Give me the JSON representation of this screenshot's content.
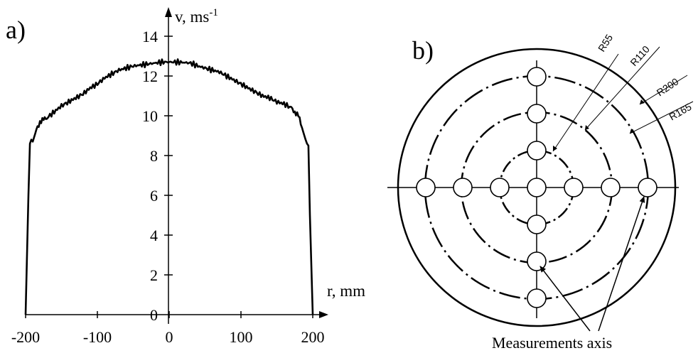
{
  "chart_data": [
    {
      "type": "line",
      "panel_label": "a)",
      "xlabel": "r, mm",
      "ylabel_main": "v, ms",
      "ylabel_sup": "-1",
      "xlim": [
        -200,
        200
      ],
      "ylim": [
        0,
        14
      ],
      "x_ticks": [
        -200,
        -100,
        0,
        100,
        200
      ],
      "x_tick_labels": [
        "-200",
        "-100",
        "0",
        "100",
        "200"
      ],
      "y_ticks": [
        0,
        2,
        4,
        6,
        8,
        10,
        12,
        14
      ],
      "y_tick_labels": [
        "0",
        "2",
        "4",
        "6",
        "8",
        "10",
        "12",
        "14"
      ],
      "grid": false,
      "series": [
        {
          "x": [
            -200,
            -196,
            -194,
            -192,
            -190,
            -185,
            -180,
            -175,
            -170,
            -160,
            -150,
            -140,
            -130,
            -120,
            -110,
            -100,
            -90,
            -80,
            -70,
            -60,
            -50,
            -40,
            -30,
            -20,
            -10,
            0,
            10,
            20,
            30,
            40,
            50,
            60,
            70,
            80,
            90,
            100,
            110,
            120,
            130,
            140,
            150,
            160,
            170,
            175,
            180,
            185,
            190,
            192,
            194,
            196,
            200
          ],
          "y": [
            0,
            6.0,
            8.6,
            8.8,
            8.7,
            9.3,
            9.7,
            9.8,
            9.9,
            10.2,
            10.5,
            10.7,
            10.9,
            11.1,
            11.4,
            11.6,
            11.9,
            12.1,
            12.3,
            12.4,
            12.5,
            12.55,
            12.6,
            12.65,
            12.7,
            12.7,
            12.7,
            12.68,
            12.65,
            12.5,
            12.4,
            12.3,
            12.2,
            12.0,
            11.8,
            11.6,
            11.4,
            11.2,
            11.0,
            10.9,
            10.7,
            10.6,
            10.4,
            10.2,
            10.0,
            9.4,
            8.8,
            8.6,
            8.5,
            5.0,
            0
          ]
        }
      ]
    },
    {
      "type": "diagram",
      "panel_label": "b)",
      "radius_labels": [
        "R55",
        "R110",
        "R200",
        "R165"
      ],
      "caption": "Measurements axis",
      "measurement_points_per_axis": 7
    }
  ]
}
